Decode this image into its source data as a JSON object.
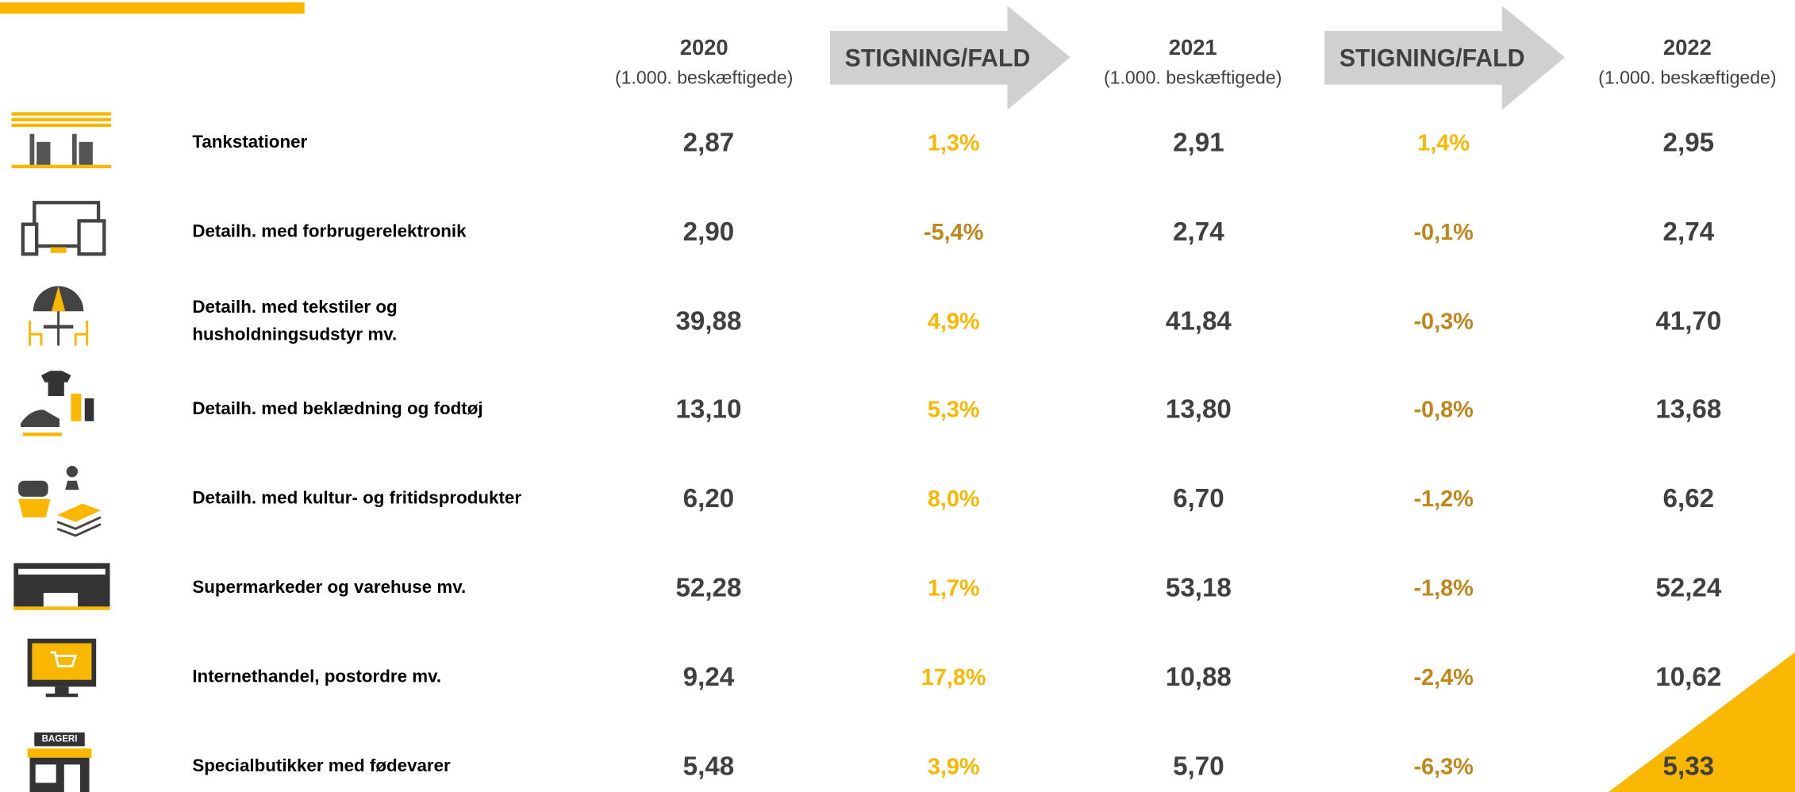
{
  "header": {
    "years": [
      {
        "year": "2020",
        "unit": "(1.000. beskæftigede)"
      },
      {
        "year": "2021",
        "unit": "(1.000. beskæftigede)"
      },
      {
        "year": "2022",
        "unit": "(1.000. beskæftigede)"
      }
    ],
    "change_labels": [
      "STIGNING/FALD",
      "STIGNING/FALD"
    ]
  },
  "rows": [
    {
      "label": [
        "Tankstationer"
      ],
      "v2020": "2,87",
      "change1": "1,3%",
      "v2021": "2,91",
      "change2": "1,4%",
      "v2022": "2,95"
    },
    {
      "label": [
        "Detailh. med forbrugerelektronik"
      ],
      "v2020": "2,90",
      "change1": "-5,4%",
      "v2021": "2,74",
      "change2": "-0,1%",
      "v2022": "2,74"
    },
    {
      "label": [
        "Detailh. med tekstiler og",
        "husholdningsudstyr mv."
      ],
      "v2020": "39,88",
      "change1": "4,9%",
      "v2021": "41,84",
      "change2": "-0,3%",
      "v2022": "41,70"
    },
    {
      "label": [
        "Detailh. med beklædning og fodtøj"
      ],
      "v2020": "13,10",
      "change1": "5,3%",
      "v2021": "13,80",
      "change2": "-0,8%",
      "v2022": "13,68"
    },
    {
      "label": [
        "Detailh. med kultur- og fritidsprodukter"
      ],
      "v2020": "6,20",
      "change1": "8,0%",
      "v2021": "6,70",
      "change2": "-1,2%",
      "v2022": "6,62"
    },
    {
      "label": [
        "Supermarkeder og varehuse mv."
      ],
      "v2020": "52,28",
      "change1": "1,7%",
      "v2021": "53,18",
      "change2": "-1,8%",
      "v2022": "52,24"
    },
    {
      "label": [
        "Internethandel, postordre mv."
      ],
      "v2020": "9,24",
      "change1": "17,8%",
      "v2021": "10,88",
      "change2": "-2,4%",
      "v2022": "10,62"
    },
    {
      "label": [
        "Specialbutikker med fødevarer"
      ],
      "v2020": "5,48",
      "change1": "3,9%",
      "v2021": "5,70",
      "change2": "-6,3%",
      "v2022": "5,33"
    }
  ]
}
